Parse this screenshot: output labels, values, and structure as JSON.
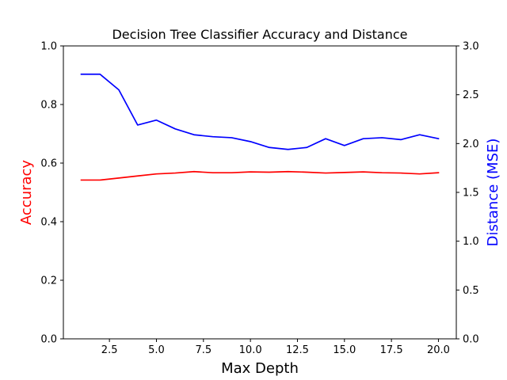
{
  "chart_data": {
    "type": "line",
    "title": "Decision Tree Classifier Accuracy and Distance",
    "xlabel": "Max Depth",
    "ylabel_left": "Accuracy",
    "ylabel_right": "Distance (MSE)",
    "x": [
      1,
      2,
      3,
      4,
      5,
      6,
      7,
      8,
      9,
      10,
      11,
      12,
      13,
      14,
      15,
      16,
      17,
      18,
      19,
      20
    ],
    "xlim": [
      0.05,
      20.95
    ],
    "xticks": [
      2.5,
      5.0,
      7.5,
      10.0,
      12.5,
      15.0,
      17.5,
      20.0
    ],
    "xtick_labels": [
      "2.5",
      "5.0",
      "7.5",
      "10.0",
      "12.5",
      "15.0",
      "17.5",
      "20.0"
    ],
    "ylim_left": [
      0.0,
      1.0
    ],
    "yticks_left": [
      0.0,
      0.2,
      0.4,
      0.6,
      0.8,
      1.0
    ],
    "ytick_labels_left": [
      "0.0",
      "0.2",
      "0.4",
      "0.6",
      "0.8",
      "1.0"
    ],
    "ylim_right": [
      0.0,
      3.0
    ],
    "yticks_right": [
      0.0,
      0.5,
      1.0,
      1.5,
      2.0,
      2.5,
      3.0
    ],
    "ytick_labels_right": [
      "0.0",
      "0.5",
      "1.0",
      "1.5",
      "2.0",
      "2.5",
      "3.0"
    ],
    "series": [
      {
        "axis": "left",
        "color": "#ff0000",
        "values": [
          0.542,
          0.542,
          0.549,
          0.556,
          0.563,
          0.566,
          0.571,
          0.567,
          0.567,
          0.57,
          0.569,
          0.571,
          0.569,
          0.566,
          0.568,
          0.57,
          0.567,
          0.566,
          0.563,
          0.567
        ]
      },
      {
        "axis": "right",
        "color": "#0000ff",
        "values": [
          2.71,
          2.71,
          2.55,
          2.19,
          2.24,
          2.15,
          2.09,
          2.07,
          2.06,
          2.02,
          1.96,
          1.94,
          1.96,
          2.05,
          1.98,
          2.05,
          2.06,
          2.04,
          2.09,
          2.05
        ]
      }
    ],
    "colors": {
      "left_label": "#ff0000",
      "right_label": "#0000ff"
    },
    "grid": false,
    "legend": "none"
  }
}
